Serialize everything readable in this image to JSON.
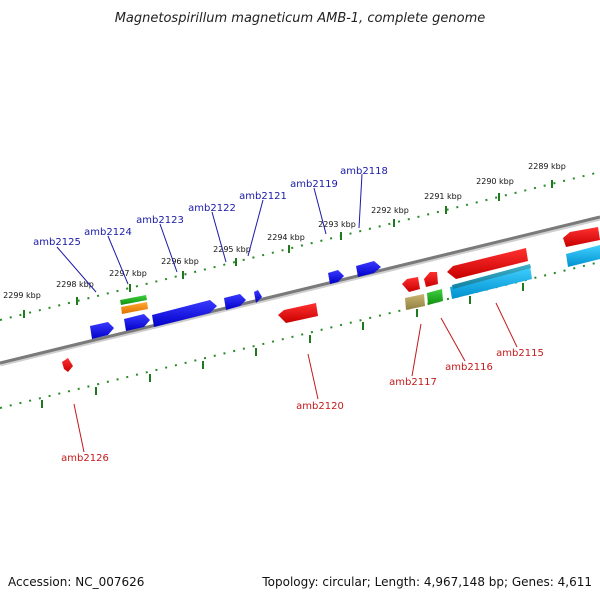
{
  "title": "Magnetospirillum magneticum AMB-1, complete genome",
  "footer": {
    "accession": "Accession: NC_007626",
    "topology": "Topology: circular; Length: 4,967,148 bp; Genes: 4,611"
  },
  "colors": {
    "backbone": "#8a8a8a",
    "tick": "#2a8a2a",
    "upper_label": "#1a1aa8",
    "lower_label": "#c41a1a"
  },
  "kbp_ticks": [
    "2289 kbp",
    "2290 kbp",
    "2291 kbp",
    "2292 kbp",
    "2293 kbp",
    "2294 kbp",
    "2295 kbp",
    "2296 kbp",
    "2297 kbp",
    "2298 kbp",
    "2299 kbp"
  ],
  "upper_genes": [
    "amb2118",
    "amb2119",
    "amb2121",
    "amb2122",
    "amb2123",
    "amb2124",
    "amb2125"
  ],
  "lower_genes": [
    "amb2115",
    "amb2116",
    "amb2117",
    "amb2120",
    "amb2126"
  ]
}
